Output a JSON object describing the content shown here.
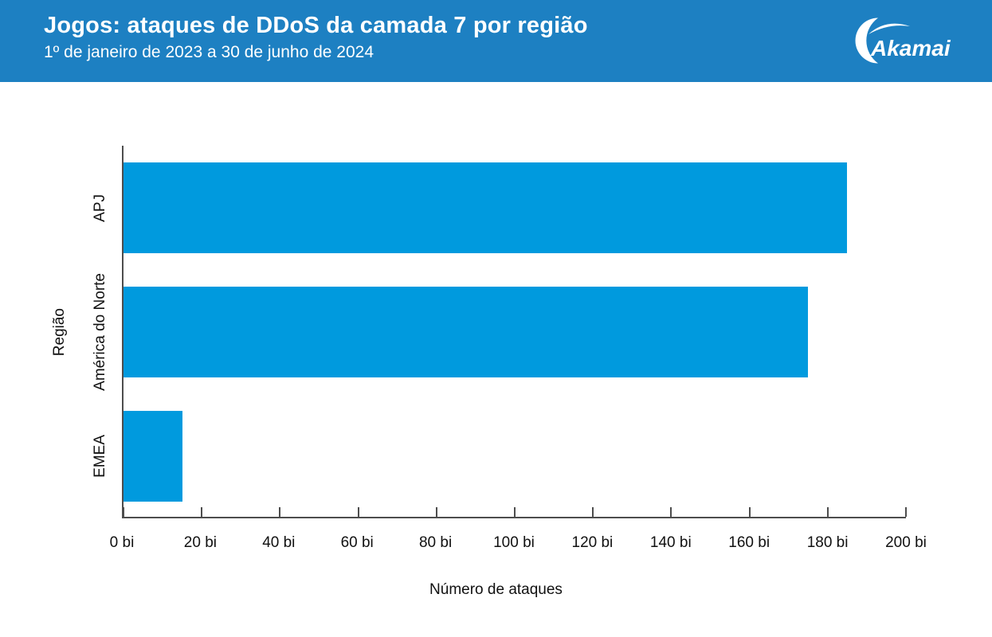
{
  "header": {
    "title": "Jogos: ataques de DDoS da camada 7 por região",
    "subtitle": "1º de janeiro de 2023 a 30 de junho de 2024",
    "logo_text": "Akamai",
    "background_color": "#1d80c2"
  },
  "chart_data": {
    "type": "bar",
    "orientation": "horizontal",
    "title": "Jogos: ataques de DDoS da camada 7 por região",
    "subtitle": "1º de janeiro de 2023 a 30 de junho de 2024",
    "categories": [
      "APJ",
      "América do Norte",
      "EMEA"
    ],
    "values": [
      185,
      175,
      15
    ],
    "unit": "bi",
    "xlabel": "Número de ataques",
    "ylabel": "Região",
    "xlim": [
      0,
      200
    ],
    "xticks": [
      0,
      20,
      40,
      60,
      80,
      100,
      120,
      140,
      160,
      180,
      200
    ],
    "xtick_labels": [
      "0 bi",
      "20 bi",
      "40 bi",
      "60 bi",
      "80 bi",
      "100 bi",
      "120 bi",
      "140 bi",
      "160 bi",
      "180 bi",
      "200 bi"
    ],
    "bar_color": "#009ade",
    "axis_color": "#4d4d4d",
    "grid": false,
    "legend": "none"
  }
}
